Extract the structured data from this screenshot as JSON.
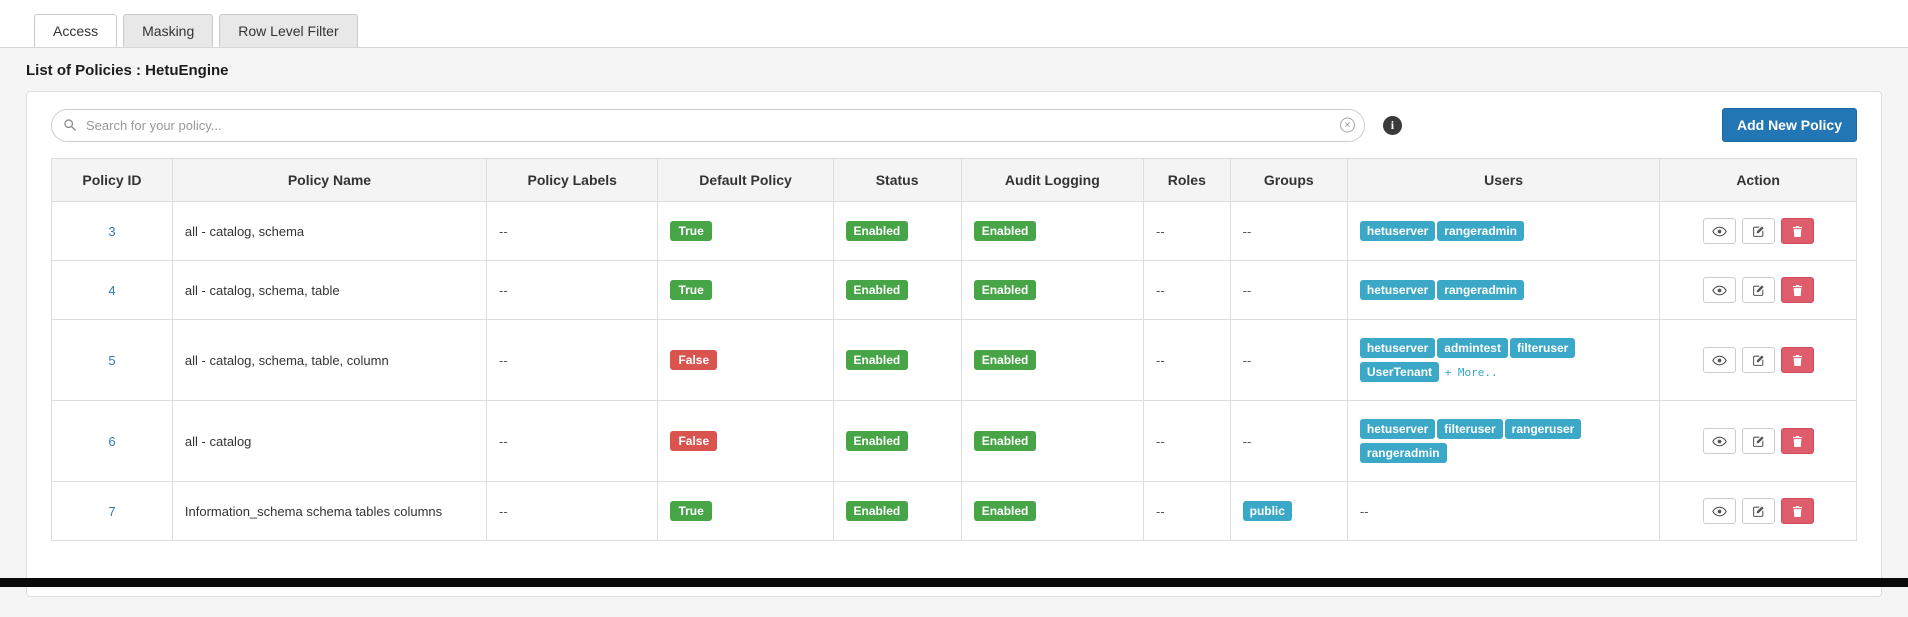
{
  "tabs": [
    {
      "label": "Access",
      "active": true
    },
    {
      "label": "Masking",
      "active": false
    },
    {
      "label": "Row Level Filter",
      "active": false
    }
  ],
  "page_title": "List of Policies : HetuEngine",
  "search": {
    "placeholder": "Search for your policy..."
  },
  "icons": {
    "info": "i",
    "clear": "✕"
  },
  "add_button_label": "Add New Policy",
  "colors": {
    "primary_button": "#2276b4",
    "link": "#337ab7",
    "badge_green": "#47a447",
    "badge_red": "#d9534f",
    "badge_teal": "#3aa8c6",
    "delete_button": "#de5c6c"
  },
  "table": {
    "headers": [
      "Policy ID",
      "Policy Name",
      "Policy Labels",
      "Default Policy",
      "Status",
      "Audit Logging",
      "Roles",
      "Groups",
      "Users",
      "Action"
    ],
    "empty_value": "--",
    "more_label": "+ More..",
    "action_buttons": [
      "view",
      "edit",
      "delete"
    ],
    "rows": [
      {
        "id": "3",
        "name": "all - catalog, schema",
        "labels": "--",
        "default_policy": "True",
        "default_color": "green",
        "status": "Enabled",
        "audit_logging": "Enabled",
        "roles": "--",
        "groups": [],
        "users": [
          "hetuserver",
          "rangeradmin"
        ],
        "more": false
      },
      {
        "id": "4",
        "name": "all - catalog, schema, table",
        "labels": "--",
        "default_policy": "True",
        "default_color": "green",
        "status": "Enabled",
        "audit_logging": "Enabled",
        "roles": "--",
        "groups": [],
        "users": [
          "hetuserver",
          "rangeradmin"
        ],
        "more": false
      },
      {
        "id": "5",
        "name": "all - catalog, schema, table, column",
        "labels": "--",
        "default_policy": "False",
        "default_color": "red",
        "status": "Enabled",
        "audit_logging": "Enabled",
        "roles": "--",
        "groups": [],
        "users": [
          "hetuserver",
          "admintest",
          "filteruser",
          "UserTenant"
        ],
        "more": true
      },
      {
        "id": "6",
        "name": "all - catalog",
        "labels": "--",
        "default_policy": "False",
        "default_color": "red",
        "status": "Enabled",
        "audit_logging": "Enabled",
        "roles": "--",
        "groups": [],
        "users": [
          "hetuserver",
          "filteruser",
          "rangeruser",
          "rangeradmin"
        ],
        "more": false
      },
      {
        "id": "7",
        "name": "Information_schema schema tables columns",
        "labels": "--",
        "default_policy": "True",
        "default_color": "green",
        "status": "Enabled",
        "audit_logging": "Enabled",
        "roles": "--",
        "groups": [
          "public"
        ],
        "users": [],
        "more": false
      }
    ]
  }
}
